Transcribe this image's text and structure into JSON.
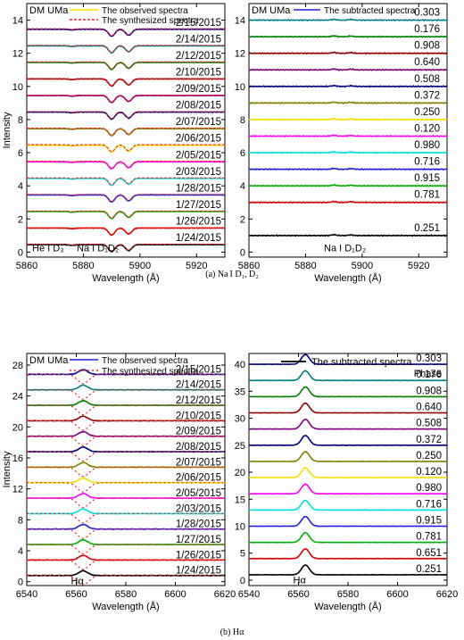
{
  "captions": {
    "top": "(a) Na I D₁, D₂",
    "bottom": "(b) Hα"
  },
  "common": {
    "ylabel": "Intensity",
    "star": "DM UMa",
    "dates": [
      "1/24/2015",
      "1/26/2015",
      "1/27/2015",
      "1/28/2015",
      "2/03/2015",
      "2/05/2015",
      "2/06/2015",
      "2/07/2015",
      "2/08/2015",
      "2/09/2015",
      "2/10/2015",
      "2/12/2015",
      "2/14/2015",
      "2/15/2015"
    ],
    "phases_a": [
      "0.251",
      "0.781",
      "0.915",
      "0.716",
      "0.980",
      "0.120",
      "0.250",
      "0.372",
      "0.508",
      "0.640",
      "0.908",
      "0.176",
      "0.303"
    ],
    "phases_b": [
      "0.251",
      "0.651",
      "0.781",
      "0.915",
      "0.716",
      "0.980",
      "0.120",
      "0.250",
      "0.372",
      "0.508",
      "0.640",
      "0.908",
      "0.176",
      "0.303"
    ],
    "colors": [
      "#000000",
      "#d40000",
      "#00b000",
      "#2020e0",
      "#00e0e0",
      "#ff00ff",
      "#f0e000",
      "#808000",
      "#000080",
      "#800080",
      "#900000",
      "#008000",
      "#008080",
      "#000090"
    ]
  },
  "chart_data": [
    {
      "type": "line",
      "panel": "a-left",
      "xlabel": "Wavelength (Å)",
      "xlim": [
        5860,
        5930
      ],
      "xticks": [
        5860,
        5880,
        5900,
        5920
      ],
      "ylim": [
        -0.3,
        15
      ],
      "yticks": [
        0,
        2,
        4,
        6,
        8,
        10,
        12,
        14
      ],
      "legend": [
        "The observed spectra",
        "The synthesized spectra"
      ],
      "annotations": [
        "He I D₃",
        "Na I D₁D₂"
      ],
      "offsets": [
        0,
        1,
        2,
        3,
        4,
        5,
        6,
        7,
        8,
        9,
        10,
        11,
        12,
        13
      ],
      "lines": [
        {
          "center": 5876,
          "depth": 0.08,
          "width": 1.0
        },
        {
          "center": 5890,
          "depth": 0.85,
          "width": 1.1
        },
        {
          "center": 5896,
          "depth": 0.72,
          "width": 1.1
        }
      ]
    },
    {
      "type": "line",
      "panel": "a-right",
      "xlabel": "Wavelength (Å)",
      "xlim": [
        5860,
        5930
      ],
      "xticks": [
        5860,
        5880,
        5900,
        5920
      ],
      "ylim": [
        -0.3,
        15
      ],
      "yticks": [
        0,
        2,
        4,
        6,
        8,
        10,
        12,
        14
      ],
      "legend": [
        "The subtracted spectra"
      ],
      "annotations": [
        "Na I D₁D₂"
      ],
      "offsets": [
        1,
        3,
        4,
        5,
        6,
        7,
        8,
        9,
        10,
        11,
        12,
        13,
        14
      ]
    },
    {
      "type": "line",
      "panel": "b-left",
      "xlabel": "Wavelength (Å)",
      "xlim": [
        6540,
        6620
      ],
      "xticks": [
        6540,
        6560,
        6580,
        6600,
        6620
      ],
      "ylim": [
        -0.5,
        29.5
      ],
      "yticks": [
        0,
        4,
        8,
        12,
        16,
        20,
        24,
        28
      ],
      "legend": [
        "The observed spectra",
        "The synthesized spectra"
      ],
      "annotations": [
        "Hα"
      ],
      "offsets": [
        0,
        2,
        4,
        6,
        8,
        10,
        12,
        14,
        16,
        18,
        20,
        22,
        24,
        26
      ],
      "line": {
        "center": 6562.8,
        "width": 1.8
      }
    },
    {
      "type": "line",
      "panel": "b-right",
      "xlabel": "Wavelength (Å)",
      "xlim": [
        6540,
        6620
      ],
      "xticks": [
        6540,
        6560,
        6580,
        6600,
        6620
      ],
      "ylim": [
        -1,
        42
      ],
      "yticks": [
        0,
        5,
        10,
        15,
        20,
        25,
        30,
        35,
        40
      ],
      "legend": [
        "The subtracted spectra"
      ],
      "phase_header": "Phase",
      "annotations": [
        "Hα"
      ],
      "offsets": [
        1,
        4,
        7,
        10,
        13,
        16,
        19,
        22,
        25,
        28,
        31,
        34,
        37,
        40
      ]
    }
  ]
}
